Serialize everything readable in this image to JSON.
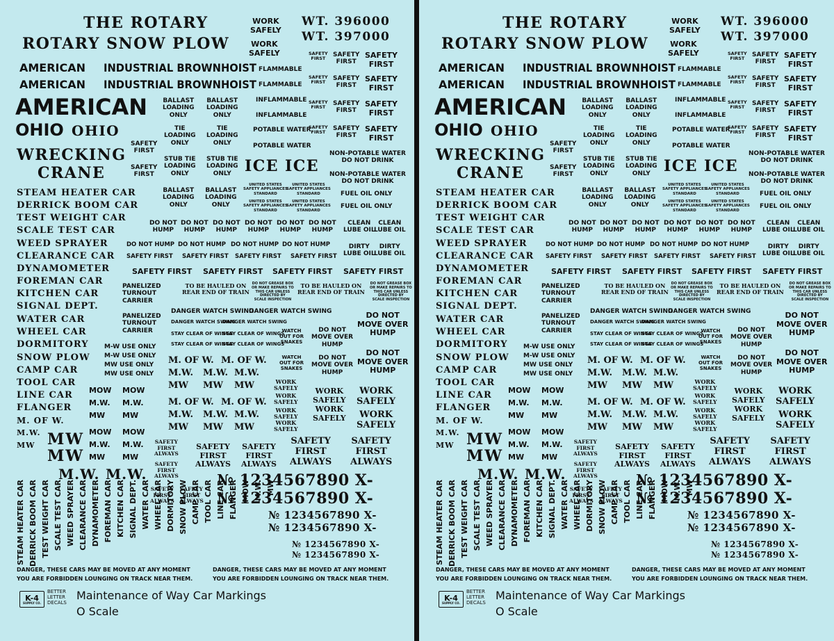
{
  "title_line1": "THE ROTARY",
  "title_line2": "ROTARY SNOW PLOW",
  "work": "WORK",
  "safely": "SAFELY",
  "work_safely": "WORK\nSAFELY",
  "wt1": "WT. 396000",
  "wt2": "WT. 397000",
  "american": "AMERICAN",
  "industrial": "INDUSTRIAL BROWNHOIST",
  "flammable": "FLAMMABLE",
  "inflammable": "INFLAMMABLE",
  "safety_first": "SAFETY FIRST",
  "safety_first_2l": "SAFETY\nFIRST",
  "safety_first_always": "SAFETY\nFIRST\nALWAYS",
  "ohio": "OHIO",
  "wrecking": "WRECKING",
  "crane": "CRANE",
  "ballast": "BALLAST\nLOADING\nONLY",
  "tie": "TIE\nLOADING\nONLY",
  "stub_tie": "STUB TIE\nLOADING\nONLY",
  "potable_water": "POTABLE WATER",
  "non_potable": "NON-POTABLE WATER\nDO NOT DRINK",
  "ice": "ICE",
  "usa_standard": "UNITED STATES\nSAFETY APPLIANCES\nSTANDARD",
  "fuel_oil": "FUEL OIL ONLY",
  "car_names": [
    "STEAM HEATER CAR",
    "DERRICK BOOM CAR",
    "TEST WEIGHT CAR",
    "SCALE TEST CAR",
    "WEED SPRAYER",
    "CLEARANCE CAR",
    "DYNAMOMETER",
    "FOREMAN CAR",
    "KITCHEN CAR",
    "SIGNAL DEPT.",
    "WATER CAR",
    "WHEEL CAR",
    "DORMITORY",
    "SNOW PLOW",
    "CAMP CAR",
    "TOOL CAR",
    "LINE CAR",
    "FLANGER",
    "M. OF W.",
    "M.W.",
    "MW"
  ],
  "vertical_names": [
    "STEAM HEATER CAR",
    "DERRICK BOOM CAR",
    "TEST WEIGHT CAR",
    "SCALE TEST CAR",
    "WEED SPRAYER",
    "CLEARANCE CAR",
    "DYNAMOMETER",
    "FOREMAN CAR",
    "KITCHEN CAR",
    "SIGNAL DEPT.",
    "WATER CAR",
    "WHEEL CAR",
    "DORMITORY",
    "SNOW PLOW",
    "CAMP CAR",
    "TOOL CAR",
    "LINE CAR",
    "FLANGER",
    "MOW",
    "M.W.",
    "MW"
  ],
  "do_not_hump_2l": "DO NOT\nHUMP",
  "do_not_hump": "DO NOT HUMP",
  "clean_lube": "CLEAN\nLUBE OIL",
  "dirty_lube": "DIRTY\nLUBE OIL",
  "panelized": "PANELIZED\nTURNOUT\nCARRIER",
  "hauled": "TO BE HAULED ON\nREAR END OF TRAIN",
  "grease_box": "DO NOT GREASE BOX\nOR MAKE REPAIRS TO\nTHIS CAR UNLESS\nDIRECTED BY\nSCALE INSPECTION",
  "danger_watch": "DANGER WATCH SWING",
  "stay_clear": "STAY CLEAR OF WINGS",
  "watch_snakes": "WATCH\nOUT FOR\nSNAKES",
  "dnm_hump": "DO NOT\nMOVE OVER\nHUMP",
  "mw_use": [
    "M-W USE ONLY",
    "M-W USE ONLY",
    "MW USE ONLY",
    "MW USE ONLY"
  ],
  "m_of_w": "M. OF W.",
  "mw_dot": "M.W.",
  "mw": "MW",
  "mow": "MOW",
  "big_mw_dot": "M.W.",
  "number_big": "№ 1234567890 X-",
  "danger_line1": "DANGER, THESE CARS MAY BE MOVED AT ANY MOMENT",
  "danger_line2": "YOU ARE FORBIDDEN LOUNGING ON TRACK NEAR THEM.",
  "logo_text": "K-4",
  "logo_sub": "SUPPLY CO.",
  "better_letter": "BETTER\nLETTER\nDECALS",
  "product_title": "Maintenance of Way Car Markings",
  "product_scale": "O Scale"
}
